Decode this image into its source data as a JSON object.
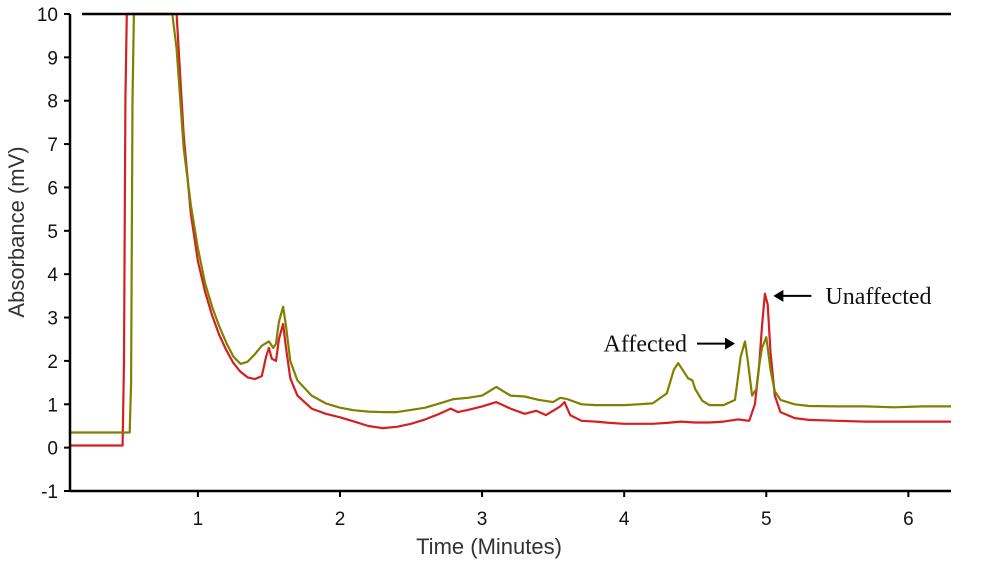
{
  "chart_data": {
    "type": "line",
    "title": "",
    "xlabel": "Time (Minutes)",
    "ylabel": "Absorbance (mV)",
    "xlim": [
      0.1,
      6.3
    ],
    "ylim": [
      -1,
      10
    ],
    "x_ticks": [
      1,
      2,
      3,
      4,
      5,
      6
    ],
    "y_ticks": [
      -1,
      0,
      1,
      2,
      3,
      4,
      5,
      6,
      7,
      8,
      9,
      10
    ],
    "grid": false,
    "annotations": [
      {
        "text": "Affected",
        "arrow": "right",
        "x": 4.78,
        "y": 2.4
      },
      {
        "text": "Unaffected",
        "arrow": "left",
        "x": 5.05,
        "y": 3.5
      }
    ],
    "series": [
      {
        "color": "#d42020",
        "points": [
          [
            0.1,
            0.05
          ],
          [
            0.47,
            0.05
          ],
          [
            0.48,
            2
          ],
          [
            0.49,
            8
          ],
          [
            0.5,
            10
          ],
          [
            0.51,
            10
          ],
          [
            0.85,
            10
          ],
          [
            0.9,
            7.2
          ],
          [
            0.95,
            5.4
          ],
          [
            1.0,
            4.3
          ],
          [
            1.05,
            3.6
          ],
          [
            1.1,
            3.05
          ],
          [
            1.15,
            2.6
          ],
          [
            1.2,
            2.25
          ],
          [
            1.25,
            1.95
          ],
          [
            1.3,
            1.75
          ],
          [
            1.35,
            1.62
          ],
          [
            1.4,
            1.58
          ],
          [
            1.45,
            1.65
          ],
          [
            1.48,
            2.1
          ],
          [
            1.5,
            2.3
          ],
          [
            1.52,
            2.05
          ],
          [
            1.55,
            2.0
          ],
          [
            1.57,
            2.5
          ],
          [
            1.6,
            2.85
          ],
          [
            1.62,
            2.3
          ],
          [
            1.65,
            1.6
          ],
          [
            1.7,
            1.2
          ],
          [
            1.8,
            0.9
          ],
          [
            1.9,
            0.78
          ],
          [
            2.0,
            0.7
          ],
          [
            2.1,
            0.6
          ],
          [
            2.2,
            0.5
          ],
          [
            2.3,
            0.45
          ],
          [
            2.4,
            0.48
          ],
          [
            2.5,
            0.55
          ],
          [
            2.6,
            0.65
          ],
          [
            2.7,
            0.78
          ],
          [
            2.78,
            0.9
          ],
          [
            2.83,
            0.82
          ],
          [
            2.9,
            0.87
          ],
          [
            3.0,
            0.95
          ],
          [
            3.1,
            1.05
          ],
          [
            3.2,
            0.9
          ],
          [
            3.3,
            0.78
          ],
          [
            3.38,
            0.85
          ],
          [
            3.45,
            0.75
          ],
          [
            3.55,
            0.95
          ],
          [
            3.58,
            1.05
          ],
          [
            3.62,
            0.75
          ],
          [
            3.7,
            0.62
          ],
          [
            3.8,
            0.6
          ],
          [
            3.9,
            0.57
          ],
          [
            4.0,
            0.55
          ],
          [
            4.1,
            0.55
          ],
          [
            4.2,
            0.55
          ],
          [
            4.3,
            0.57
          ],
          [
            4.4,
            0.6
          ],
          [
            4.5,
            0.58
          ],
          [
            4.6,
            0.58
          ],
          [
            4.7,
            0.6
          ],
          [
            4.8,
            0.65
          ],
          [
            4.88,
            0.62
          ],
          [
            4.92,
            1.0
          ],
          [
            4.95,
            1.9
          ],
          [
            4.97,
            2.8
          ],
          [
            4.99,
            3.55
          ],
          [
            5.01,
            3.3
          ],
          [
            5.03,
            2.2
          ],
          [
            5.06,
            1.2
          ],
          [
            5.1,
            0.82
          ],
          [
            5.2,
            0.68
          ],
          [
            5.3,
            0.64
          ],
          [
            5.5,
            0.62
          ],
          [
            5.7,
            0.6
          ],
          [
            5.9,
            0.6
          ],
          [
            6.1,
            0.6
          ],
          [
            6.3,
            0.6
          ]
        ]
      },
      {
        "color": "#808000",
        "points": [
          [
            0.1,
            0.35
          ],
          [
            0.52,
            0.35
          ],
          [
            0.53,
            1.5
          ],
          [
            0.54,
            8
          ],
          [
            0.55,
            10
          ],
          [
            0.56,
            10
          ],
          [
            0.82,
            10
          ],
          [
            0.85,
            9.2
          ],
          [
            0.9,
            6.9
          ],
          [
            0.95,
            5.6
          ],
          [
            1.0,
            4.6
          ],
          [
            1.05,
            3.8
          ],
          [
            1.1,
            3.25
          ],
          [
            1.15,
            2.8
          ],
          [
            1.2,
            2.42
          ],
          [
            1.25,
            2.1
          ],
          [
            1.3,
            1.93
          ],
          [
            1.35,
            1.98
          ],
          [
            1.4,
            2.15
          ],
          [
            1.45,
            2.35
          ],
          [
            1.5,
            2.45
          ],
          [
            1.53,
            2.3
          ],
          [
            1.55,
            2.4
          ],
          [
            1.57,
            2.9
          ],
          [
            1.6,
            3.25
          ],
          [
            1.62,
            2.8
          ],
          [
            1.65,
            2.0
          ],
          [
            1.7,
            1.55
          ],
          [
            1.8,
            1.2
          ],
          [
            1.9,
            1.02
          ],
          [
            2.0,
            0.92
          ],
          [
            2.1,
            0.86
          ],
          [
            2.2,
            0.83
          ],
          [
            2.3,
            0.82
          ],
          [
            2.4,
            0.82
          ],
          [
            2.5,
            0.87
          ],
          [
            2.6,
            0.92
          ],
          [
            2.7,
            1.02
          ],
          [
            2.8,
            1.12
          ],
          [
            2.9,
            1.15
          ],
          [
            3.0,
            1.2
          ],
          [
            3.05,
            1.3
          ],
          [
            3.1,
            1.4
          ],
          [
            3.15,
            1.3
          ],
          [
            3.2,
            1.2
          ],
          [
            3.3,
            1.18
          ],
          [
            3.4,
            1.1
          ],
          [
            3.5,
            1.05
          ],
          [
            3.55,
            1.15
          ],
          [
            3.6,
            1.12
          ],
          [
            3.7,
            1.0
          ],
          [
            3.8,
            0.98
          ],
          [
            3.9,
            0.98
          ],
          [
            4.0,
            0.98
          ],
          [
            4.1,
            1.0
          ],
          [
            4.2,
            1.02
          ],
          [
            4.3,
            1.25
          ],
          [
            4.35,
            1.8
          ],
          [
            4.38,
            1.95
          ],
          [
            4.42,
            1.75
          ],
          [
            4.45,
            1.6
          ],
          [
            4.48,
            1.55
          ],
          [
            4.5,
            1.35
          ],
          [
            4.55,
            1.08
          ],
          [
            4.6,
            0.98
          ],
          [
            4.7,
            0.98
          ],
          [
            4.78,
            1.1
          ],
          [
            4.82,
            2.1
          ],
          [
            4.85,
            2.45
          ],
          [
            4.87,
            2.0
          ],
          [
            4.9,
            1.2
          ],
          [
            4.93,
            1.35
          ],
          [
            4.95,
            1.9
          ],
          [
            4.97,
            2.3
          ],
          [
            5.0,
            2.55
          ],
          [
            5.03,
            1.8
          ],
          [
            5.06,
            1.3
          ],
          [
            5.1,
            1.1
          ],
          [
            5.2,
            1.0
          ],
          [
            5.3,
            0.96
          ],
          [
            5.5,
            0.95
          ],
          [
            5.7,
            0.95
          ],
          [
            5.9,
            0.93
          ],
          [
            6.1,
            0.95
          ],
          [
            6.3,
            0.95
          ]
        ]
      }
    ]
  }
}
